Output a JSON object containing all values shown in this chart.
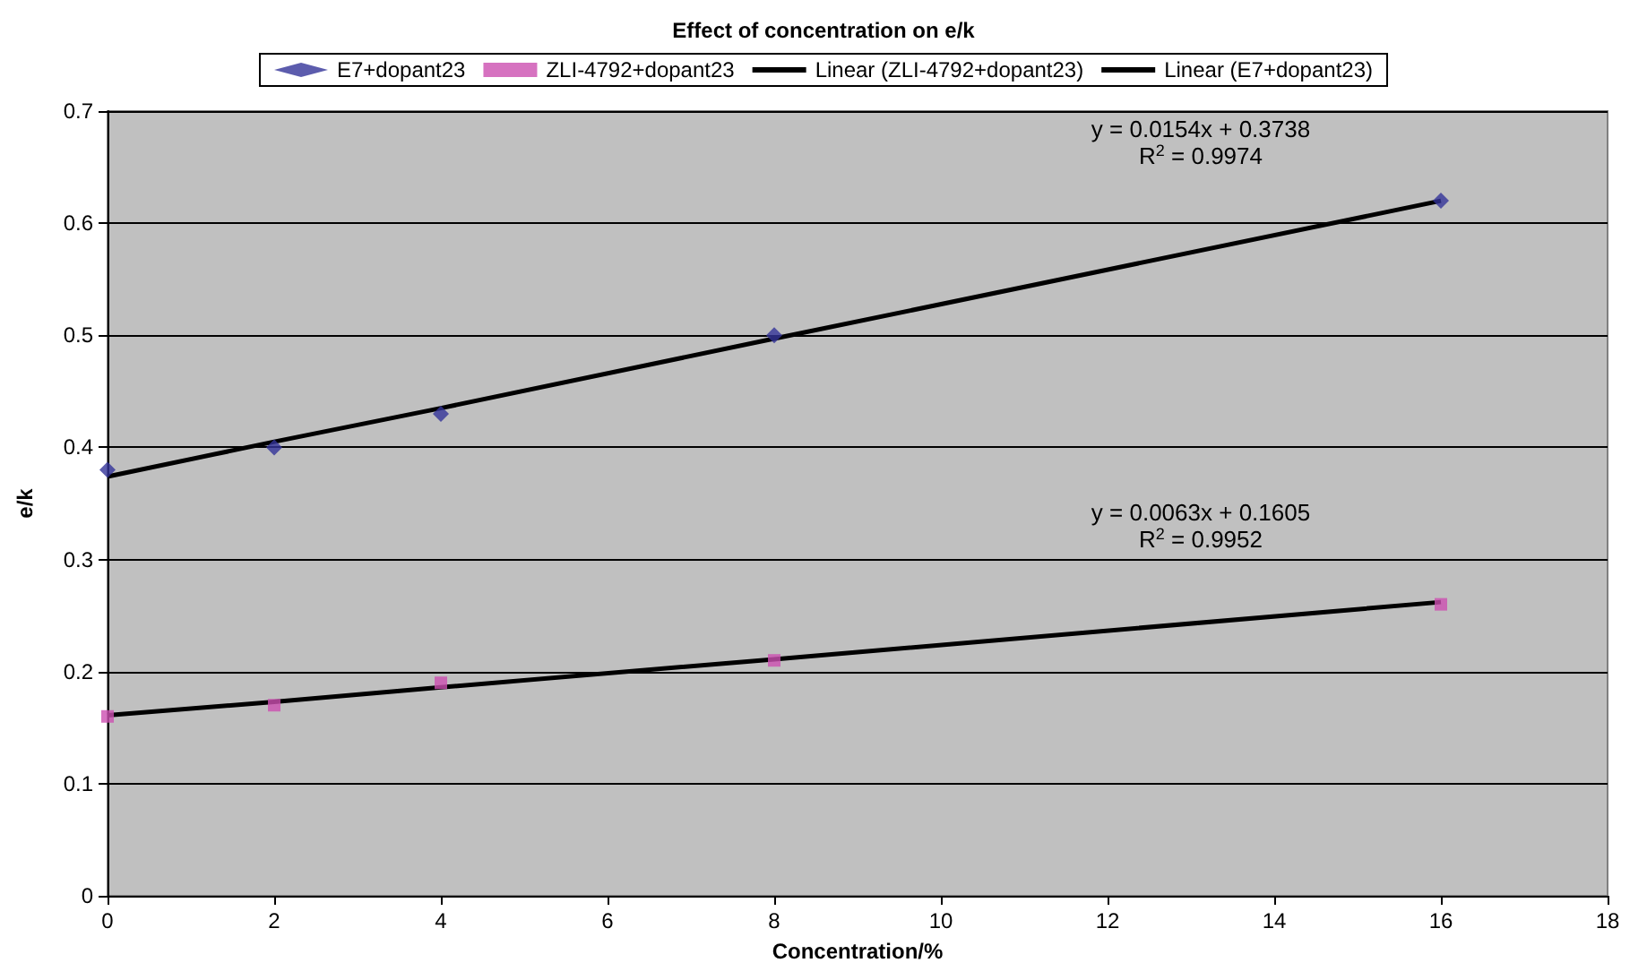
{
  "chart_data": {
    "type": "scatter",
    "title": "Effect of concentration on e/k",
    "xlabel": "Concentration/%",
    "ylabel": "e/k",
    "x": [
      0,
      2,
      4,
      8,
      16
    ],
    "series": [
      {
        "name": "E7+dopant23",
        "marker": "diamond",
        "color": "#333399",
        "values": [
          0.38,
          0.4,
          0.43,
          0.5,
          0.62
        ]
      },
      {
        "name": "ZLI-4792+dopant23",
        "marker": "square",
        "color": "#cc4fb0",
        "values": [
          0.16,
          0.17,
          0.19,
          0.21,
          0.26
        ]
      },
      {
        "name": "Linear (ZLI-4792+dopant23)",
        "type": "line",
        "line_style": "solid",
        "color": "#000000",
        "values": [
          0.161,
          0.173,
          0.186,
          0.211,
          0.262
        ]
      },
      {
        "name": "Linear (E7+dopant23)",
        "type": "line",
        "line_style": "solid",
        "color": "#000000",
        "values": [
          0.374,
          0.405,
          0.435,
          0.497,
          0.62
        ]
      }
    ],
    "annotations": [
      "y = 0.0154x + 0.3738",
      "R$^{2}$ = 0.9974",
      "y = 0.0063x + 0.1605",
      "R$^{2}$ = 0.9952"
    ],
    "xlim": [
      0,
      18
    ],
    "xticks": [
      0,
      2,
      4,
      6,
      8,
      10,
      12,
      14,
      16,
      18
    ],
    "ylim": [
      0,
      0.7
    ],
    "yticks": [
      0,
      0.1,
      0.2,
      0.3,
      0.4,
      0.5,
      0.6,
      0.7
    ],
    "grid": "y",
    "legend": "top"
  }
}
